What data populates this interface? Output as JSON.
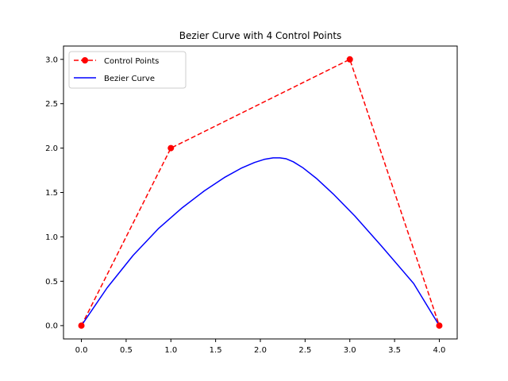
{
  "chart_data": {
    "type": "line",
    "title": "Bezier Curve with 4 Control Points",
    "xlabel": "",
    "ylabel": "",
    "xlim": [
      -0.2,
      4.2
    ],
    "ylim": [
      -0.15,
      3.15
    ],
    "xticks": [
      0.0,
      0.5,
      1.0,
      1.5,
      2.0,
      2.5,
      3.0,
      3.5,
      4.0
    ],
    "xtick_labels": [
      "0.0",
      "0.5",
      "1.0",
      "1.5",
      "2.0",
      "2.5",
      "3.0",
      "3.5",
      "4.0"
    ],
    "yticks": [
      0.0,
      0.5,
      1.0,
      1.5,
      2.0,
      2.5,
      3.0
    ],
    "ytick_labels": [
      "0.0",
      "0.5",
      "1.0",
      "1.5",
      "2.0",
      "2.5",
      "3.0"
    ],
    "grid": false,
    "legend": {
      "position": "top-left"
    },
    "series": [
      {
        "name": "Control Points",
        "style": "dashed-with-markers",
        "color": "#ff0000",
        "x": [
          0,
          1,
          3,
          4
        ],
        "y": [
          0,
          2,
          3,
          0
        ]
      },
      {
        "name": "Bezier Curve",
        "style": "solid",
        "color": "#0000ff",
        "x": [
          0,
          0.289,
          0.578,
          0.859,
          1.127,
          1.375,
          1.597,
          1.785,
          1.935,
          2.043,
          2.143,
          2.218,
          2.289,
          2.368,
          2.478,
          2.625,
          2.815,
          3.055,
          3.35,
          3.713,
          4.0
        ],
        "y": [
          0,
          0.428,
          0.791,
          1.091,
          1.328,
          1.519,
          1.668,
          1.773,
          1.838,
          1.873,
          1.89,
          1.89,
          1.88,
          1.846,
          1.777,
          1.66,
          1.483,
          1.236,
          0.901,
          0.475,
          0
        ]
      }
    ]
  }
}
